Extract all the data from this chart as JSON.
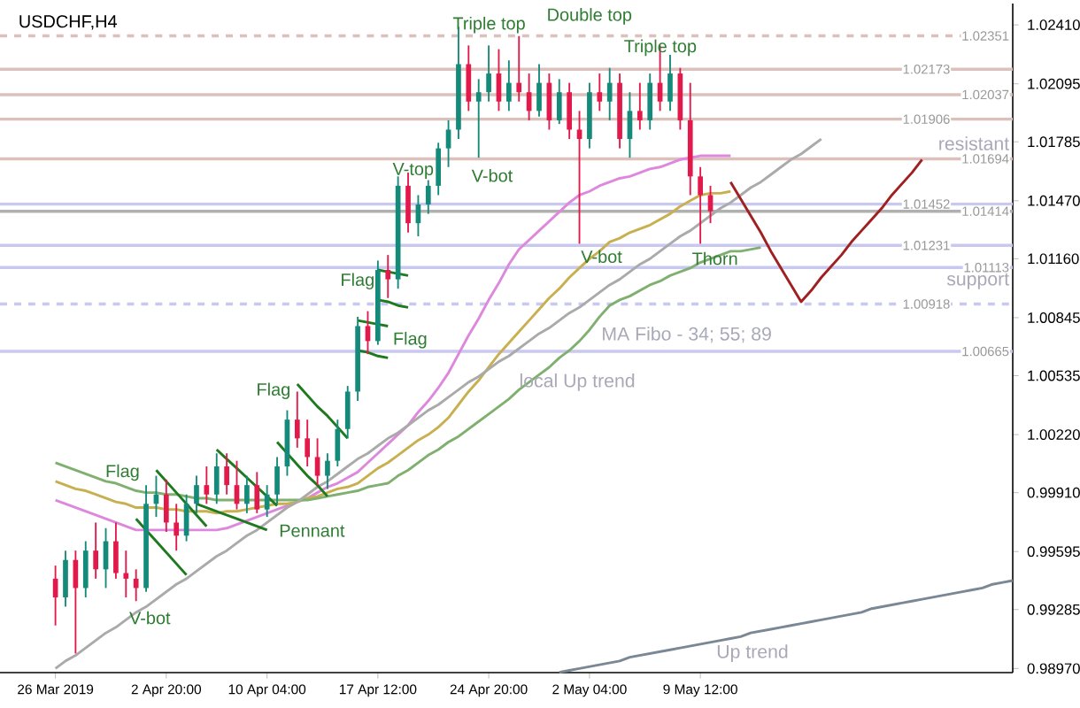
{
  "chart_data": {
    "type": "candlestick",
    "title": "USDCHF,H4",
    "categories": [
      "26 Mar 2019",
      null,
      null,
      null,
      null,
      null,
      null,
      null,
      null,
      null,
      null,
      "2 Apr 20:00",
      null,
      null,
      null,
      null,
      null,
      null,
      null,
      null,
      null,
      "10 Apr 04:00",
      null,
      null,
      null,
      null,
      null,
      null,
      null,
      null,
      null,
      null,
      "17 Apr 12:00",
      null,
      null,
      null,
      null,
      null,
      null,
      null,
      null,
      null,
      null,
      "24 Apr 20:00",
      null,
      null,
      null,
      null,
      null,
      null,
      null,
      null,
      null,
      "2 May 04:00",
      null,
      null,
      null,
      null,
      null,
      null,
      null,
      null,
      null,
      null,
      "9 May 12:00",
      null,
      null,
      null,
      null,
      null,
      null,
      null,
      null,
      null,
      null,
      null,
      null,
      null,
      null,
      null,
      null,
      null,
      null,
      null,
      null,
      null,
      null,
      null,
      null,
      null,
      null,
      null,
      null,
      null,
      null,
      null
    ],
    "ohlc": [
      [
        0.9945,
        0.9952,
        0.992,
        0.9935
      ],
      [
        0.9935,
        0.996,
        0.993,
        0.9955
      ],
      [
        0.9955,
        0.996,
        0.9905,
        0.994
      ],
      [
        0.994,
        0.9965,
        0.9935,
        0.996
      ],
      [
        0.996,
        0.9975,
        0.9945,
        0.995
      ],
      [
        0.995,
        0.9972,
        0.994,
        0.9965
      ],
      [
        0.9965,
        0.9975,
        0.9945,
        0.9948
      ],
      [
        0.9948,
        0.996,
        0.9935,
        0.9945
      ],
      [
        0.9945,
        0.995,
        0.9933,
        0.994
      ],
      [
        0.994,
        0.9995,
        0.9938,
        0.9985
      ],
      [
        0.9985,
        1.0,
        0.9978,
        0.999
      ],
      [
        0.999,
        0.9998,
        0.997,
        0.9975
      ],
      [
        0.9975,
        0.9985,
        0.996,
        0.9968
      ],
      [
        0.9968,
        0.999,
        0.9965,
        0.9985
      ],
      [
        0.9985,
        1.0,
        0.998,
        0.9995
      ],
      [
        0.9995,
        1.0005,
        0.9985,
        0.999
      ],
      [
        0.999,
        1.0012,
        0.9985,
        1.0005
      ],
      [
        1.0005,
        1.0012,
        0.999,
        0.9995
      ],
      [
        0.9995,
        1.0008,
        0.9982,
        0.9985
      ],
      [
        0.9985,
        1.0,
        0.998,
        0.9995
      ],
      [
        0.9995,
        1.0002,
        0.998,
        0.9982
      ],
      [
        0.9982,
        0.9995,
        0.9978,
        0.999
      ],
      [
        0.999,
        1.001,
        0.9985,
        1.0005
      ],
      [
        1.0005,
        1.0035,
        1.0,
        1.003
      ],
      [
        1.003,
        1.0045,
        1.0015,
        1.002
      ],
      [
        1.002,
        1.003,
        1.0005,
        1.001
      ],
      [
        1.001,
        1.002,
        0.9995,
        1.0
      ],
      [
        1.0,
        1.0012,
        0.9993,
        1.0008
      ],
      [
        1.0008,
        1.003,
        1.0005,
        1.0025
      ],
      [
        1.0025,
        1.0048,
        1.002,
        1.0045
      ],
      [
        1.0045,
        1.0085,
        1.004,
        1.008
      ],
      [
        1.008,
        1.0088,
        1.0065,
        1.0072
      ],
      [
        1.0072,
        1.0115,
        1.007,
        1.011
      ],
      [
        1.011,
        1.0118,
        1.0095,
        1.0105
      ],
      [
        1.0105,
        1.016,
        1.01,
        1.0155
      ],
      [
        1.0155,
        1.0162,
        1.013,
        1.0135
      ],
      [
        1.0135,
        1.015,
        1.0128,
        1.0145
      ],
      [
        1.0145,
        1.0158,
        1.014,
        1.0155
      ],
      [
        1.0155,
        1.0178,
        1.015,
        1.0175
      ],
      [
        1.0175,
        1.019,
        1.0165,
        1.0185
      ],
      [
        1.0185,
        1.024,
        1.018,
        1.022
      ],
      [
        1.022,
        1.023,
        1.0195,
        1.02
      ],
      [
        1.02,
        1.0212,
        1.017,
        1.0205
      ],
      [
        1.0205,
        1.023,
        1.02,
        1.0215
      ],
      [
        1.0215,
        1.0228,
        1.0195,
        1.02
      ],
      [
        1.02,
        1.0222,
        1.0195,
        1.021
      ],
      [
        1.021,
        1.0235,
        1.02,
        1.0205
      ],
      [
        1.0205,
        1.0215,
        1.019,
        1.0195
      ],
      [
        1.0195,
        1.022,
        1.0192,
        1.021
      ],
      [
        1.021,
        1.0215,
        1.0185,
        1.019
      ],
      [
        1.019,
        1.0212,
        1.0188,
        1.0205
      ],
      [
        1.0205,
        1.021,
        1.018,
        1.0185
      ],
      [
        1.0185,
        1.0195,
        1.0124,
        1.018
      ],
      [
        1.018,
        1.021,
        1.0175,
        1.0205
      ],
      [
        1.0205,
        1.0215,
        1.0195,
        1.02
      ],
      [
        1.02,
        1.0218,
        1.019,
        1.021
      ],
      [
        1.021,
        1.0215,
        1.0175,
        1.018
      ],
      [
        1.018,
        1.0205,
        1.017,
        1.0195
      ],
      [
        1.0195,
        1.021,
        1.0185,
        1.019
      ],
      [
        1.019,
        1.0215,
        1.0185,
        1.021
      ],
      [
        1.021,
        1.023,
        1.0195,
        1.02
      ],
      [
        1.02,
        1.0225,
        1.0195,
        1.0215
      ],
      [
        1.0215,
        1.0218,
        1.0185,
        1.019
      ],
      [
        1.019,
        1.021,
        1.015,
        1.016
      ],
      [
        1.016,
        1.0165,
        1.0124,
        1.015
      ],
      [
        1.015,
        1.0155,
        1.0135,
        1.01414
      ],
      null,
      null,
      null,
      null,
      null,
      null,
      null,
      null,
      null,
      null,
      null,
      null,
      null,
      null,
      null,
      null,
      null,
      null,
      null,
      null,
      null,
      null,
      null,
      null,
      null,
      null,
      null,
      null,
      null,
      null
    ],
    "colors": [
      "#e2194b",
      "#138a7a",
      "#e2194b",
      "#138a7a",
      "#e2194b",
      "#138a7a",
      "#e2194b",
      "#e2194b",
      "#e2194b",
      "#138a7a",
      "#138a7a",
      "#e2194b",
      "#e2194b",
      "#138a7a",
      "#138a7a",
      "#e2194b",
      "#138a7a",
      "#e2194b",
      "#e2194b",
      "#138a7a",
      "#e2194b",
      "#138a7a",
      "#138a7a",
      "#138a7a",
      "#e2194b",
      "#e2194b",
      "#e2194b",
      "#138a7a",
      "#138a7a",
      "#138a7a",
      "#138a7a",
      "#e2194b",
      "#138a7a",
      "#e2194b",
      "#138a7a",
      "#e2194b",
      "#138a7a",
      "#138a7a",
      "#138a7a",
      "#138a7a",
      "#138a7a",
      "#e2194b",
      "#138a7a",
      "#138a7a",
      "#e2194b",
      "#138a7a",
      "#e2194b",
      "#e2194b",
      "#138a7a",
      "#e2194b",
      "#138a7a",
      "#e2194b",
      "#e2194b",
      "#138a7a",
      "#e2194b",
      "#138a7a",
      "#e2194b",
      "#138a7a",
      "#e2194b",
      "#138a7a",
      "#e2194b",
      "#138a7a",
      "#e2194b",
      "#e2194b",
      "#e2194b",
      "#e2194b",
      null,
      null,
      null,
      null,
      null,
      null,
      null,
      null,
      null,
      null,
      null,
      null,
      null,
      null,
      null,
      null,
      null,
      null,
      null,
      null,
      null,
      null,
      null,
      null,
      null,
      null,
      null,
      null,
      null,
      null
    ],
    "series": [
      {
        "type": "line",
        "color": "#dd88dd",
        "values": [
          0.9987,
          0.9985,
          0.9983,
          0.9981,
          0.9979,
          0.9977,
          0.9975,
          0.9973,
          0.9971,
          0.9971,
          0.9971,
          0.9971,
          0.9971,
          0.9971,
          0.9971,
          0.9971,
          0.9971,
          0.9972,
          0.9974,
          0.9976,
          0.9978,
          0.998,
          0.9982,
          0.9984,
          0.9986,
          0.9988,
          0.9991,
          0.9994,
          0.9996,
          0.9999,
          1.0002,
          1.0007,
          1.0012,
          1.0017,
          1.0022,
          1.0027,
          1.0034,
          1.004,
          1.0047,
          1.0055,
          1.0065,
          1.0075,
          1.0084,
          1.0094,
          1.0103,
          1.0113,
          1.0121,
          1.0126,
          1.0131,
          1.0136,
          1.0141,
          1.0146,
          1.015,
          1.0152,
          1.0155,
          1.0157,
          1.0159,
          1.016,
          1.0162,
          1.0164,
          1.0165,
          1.0167,
          1.0169,
          1.017,
          1.0171,
          1.0171,
          1.0171,
          1.0171,
          null,
          null,
          null,
          null,
          null,
          null,
          null,
          null,
          null,
          null,
          null,
          null,
          null,
          null,
          null,
          null,
          null,
          null,
          null,
          null,
          null,
          null,
          null,
          null,
          null,
          null,
          null,
          null
        ]
      },
      {
        "type": "line",
        "color": "#c8b050",
        "values": [
          0.9997,
          0.9995,
          0.9993,
          0.9992,
          0.999,
          0.9988,
          0.9986,
          0.9985,
          0.9983,
          0.9983,
          0.9983,
          0.9982,
          0.9982,
          0.9981,
          0.9981,
          0.9981,
          0.998,
          0.9981,
          0.9981,
          0.9982,
          0.9983,
          0.9984,
          0.9985,
          0.9985,
          0.9986,
          0.9988,
          0.9989,
          0.9991,
          0.9993,
          0.9994,
          0.9996,
          1.0,
          1.0004,
          1.0007,
          1.0011,
          1.0015,
          1.0019,
          1.0022,
          1.0026,
          1.0031,
          1.0038,
          1.0045,
          1.0051,
          1.0058,
          1.0065,
          1.0071,
          1.0077,
          1.0083,
          1.0089,
          1.0095,
          1.01,
          1.0106,
          1.0111,
          1.0116,
          1.012,
          1.0125,
          1.0127,
          1.013,
          1.0132,
          1.0134,
          1.0137,
          1.014,
          1.0144,
          1.0147,
          1.015,
          1.0151,
          1.0151,
          1.0152,
          null,
          null,
          null,
          null,
          null,
          null,
          null,
          null,
          null,
          null,
          null,
          null,
          null,
          null,
          null,
          null,
          null,
          null,
          null,
          null,
          null,
          null,
          null,
          null,
          null,
          null,
          null,
          null
        ]
      },
      {
        "type": "line",
        "color": "#80b070",
        "values": [
          1.0007,
          1.0005,
          1.0003,
          1.0001,
          0.9999,
          0.9997,
          0.9996,
          0.9994,
          0.9992,
          0.9991,
          0.9991,
          0.999,
          0.999,
          0.9989,
          0.9988,
          0.9988,
          0.9987,
          0.9987,
          0.9987,
          0.9987,
          0.9987,
          0.9987,
          0.9987,
          0.9987,
          0.9987,
          0.9987,
          0.9988,
          0.9989,
          0.999,
          0.9991,
          0.9992,
          0.9994,
          0.9995,
          0.9996,
          1.0,
          1.0003,
          1.0007,
          1.0011,
          1.0014,
          1.0018,
          1.0021,
          1.0025,
          1.0029,
          1.0033,
          1.0037,
          1.0041,
          1.0046,
          1.005,
          1.0054,
          1.0058,
          1.0063,
          1.0067,
          1.0072,
          1.0078,
          1.0085,
          1.0091,
          1.0094,
          1.0096,
          1.0099,
          1.0102,
          1.0104,
          1.0107,
          1.0109,
          1.0111,
          1.0114,
          1.0116,
          1.0118,
          1.012,
          1.012,
          1.0121,
          1.0122,
          null,
          null,
          null,
          null,
          null,
          null,
          null,
          null,
          null,
          null,
          null,
          null,
          null,
          null,
          null,
          null,
          null,
          null,
          null,
          null,
          null,
          null,
          null,
          null,
          null
        ]
      },
      {
        "type": "line",
        "color": "#aaaaaa",
        "values": [
          0.9897,
          0.9901,
          0.9904,
          0.9908,
          0.9912,
          0.9916,
          0.9919,
          0.9923,
          0.9927,
          0.993,
          0.9934,
          0.9938,
          0.9942,
          0.9945,
          0.9949,
          0.9953,
          0.9957,
          0.996,
          0.9964,
          0.9968,
          0.9971,
          0.9975,
          0.9979,
          0.9983,
          0.9986,
          0.999,
          0.9994,
          0.9997,
          1.0001,
          1.0005,
          1.0009,
          1.0012,
          1.0016,
          1.002,
          1.0023,
          1.0027,
          1.0031,
          1.0035,
          1.0038,
          1.0042,
          1.0046,
          1.005,
          1.0053,
          1.0057,
          1.0061,
          1.0064,
          1.0068,
          1.0072,
          1.0076,
          1.0079,
          1.0083,
          1.0087,
          1.009,
          1.0094,
          1.0098,
          1.0102,
          1.0105,
          1.0109,
          1.0113,
          1.0116,
          1.012,
          1.0124,
          1.0128,
          1.0131,
          1.0135,
          1.0139,
          1.0143,
          1.0146,
          1.015,
          1.0154,
          1.0157,
          1.0161,
          1.0165,
          1.0169,
          1.0172,
          1.0176,
          1.018,
          null,
          null,
          null,
          null,
          null,
          null,
          null,
          null,
          null,
          null,
          null,
          null,
          null,
          null,
          null,
          null,
          null,
          null,
          null
        ]
      },
      {
        "type": "line",
        "color": "#7a8794",
        "values": [
          null,
          null,
          null,
          null,
          null,
          null,
          null,
          null,
          null,
          null,
          null,
          null,
          null,
          null,
          null,
          null,
          null,
          null,
          null,
          null,
          null,
          null,
          null,
          null,
          null,
          null,
          null,
          null,
          null,
          null,
          null,
          null,
          null,
          null,
          null,
          null,
          null,
          null,
          null,
          null,
          null,
          null,
          null,
          null,
          null,
          null,
          null,
          null,
          null,
          null,
          0.9895,
          0.9896,
          0.9897,
          0.9898,
          0.9899,
          0.99,
          0.9901,
          0.9903,
          0.9904,
          0.9905,
          0.9906,
          0.9907,
          0.9908,
          0.9909,
          0.991,
          0.9911,
          0.9912,
          0.9913,
          0.9914,
          0.9916,
          0.9917,
          0.9918,
          0.9919,
          0.992,
          0.9921,
          0.9922,
          0.9923,
          0.9924,
          0.9925,
          0.9926,
          0.9927,
          0.9929,
          0.993,
          0.9931,
          0.9932,
          0.9933,
          0.9934,
          0.9935,
          0.9936,
          0.9937,
          0.9938,
          0.9939,
          0.994,
          0.9942,
          0.9943,
          0.9944
        ]
      },
      {
        "type": "line",
        "color": "#1e7a1e",
        "values": [
          null,
          null,
          null,
          null,
          null,
          null,
          null,
          null,
          null,
          null,
          1.0003,
          0.9997,
          0.9991,
          0.9985,
          0.9979,
          0.9973,
          null,
          null,
          null,
          null,
          null,
          null,
          null,
          null,
          null,
          null,
          null,
          null,
          null,
          null,
          null,
          null,
          null,
          null,
          null,
          null,
          null,
          null,
          null,
          null,
          null,
          null,
          null,
          null,
          null,
          null,
          null,
          null,
          null,
          null,
          null,
          null,
          null,
          null,
          null,
          null,
          null,
          null,
          null,
          null,
          null,
          null,
          null,
          null,
          null,
          null,
          null,
          null,
          null,
          null,
          null,
          null,
          null,
          null,
          null,
          null,
          null,
          null,
          null,
          null,
          null,
          null,
          null,
          null,
          null,
          null,
          null,
          null,
          null,
          null,
          null,
          null,
          null,
          null,
          null,
          null
        ]
      },
      {
        "type": "line",
        "color": "#1e7a1e",
        "values": [
          null,
          null,
          null,
          null,
          null,
          null,
          null,
          null,
          0.9977,
          0.9971,
          0.9965,
          0.9959,
          0.9953,
          0.9947,
          null,
          null,
          null,
          null,
          null,
          null,
          null,
          null,
          null,
          null,
          null,
          null,
          null,
          null,
          null,
          null,
          null,
          null,
          null,
          null,
          null,
          null,
          null,
          null,
          null,
          null,
          null,
          null,
          null,
          null,
          null,
          null,
          null,
          null,
          null,
          null,
          null,
          null,
          null,
          null,
          null,
          null,
          null,
          null,
          null,
          null,
          null,
          null,
          null,
          null,
          null,
          null,
          null,
          null,
          null,
          null,
          null,
          null,
          null,
          null,
          null,
          null,
          null,
          null,
          null,
          null,
          null,
          null,
          null,
          null,
          null,
          null,
          null,
          null,
          null,
          null,
          null,
          null,
          null,
          null,
          null,
          null
        ]
      },
      {
        "type": "line",
        "color": "#1e7a1e",
        "values": [
          null,
          null,
          null,
          null,
          null,
          null,
          null,
          null,
          null,
          null,
          null,
          null,
          null,
          null,
          0.9985,
          0.9983,
          0.9981,
          0.9979,
          0.9977,
          0.9975,
          0.9973,
          0.9971,
          null,
          null,
          null,
          null,
          null,
          null,
          null,
          null,
          null,
          null,
          null,
          null,
          null,
          null,
          null,
          null,
          null,
          null,
          null,
          null,
          null,
          null,
          null,
          null,
          null,
          null,
          null,
          null,
          null,
          null,
          null,
          null,
          null,
          null,
          null,
          null,
          null,
          null,
          null,
          null,
          null,
          null,
          null,
          null,
          null,
          null,
          null,
          null,
          null,
          null,
          null,
          null,
          null,
          null,
          null,
          null,
          null,
          null,
          null,
          null,
          null,
          null,
          null,
          null,
          null,
          null,
          null,
          null,
          null,
          null,
          null,
          null,
          null,
          null
        ]
      },
      {
        "type": "line",
        "color": "#1e7a1e",
        "values": [
          null,
          null,
          null,
          null,
          null,
          null,
          null,
          null,
          null,
          null,
          null,
          null,
          null,
          null,
          null,
          null,
          1.0014,
          1.0009,
          1.0004,
          0.9999,
          0.9994,
          0.9989,
          0.9984,
          null,
          null,
          null,
          null,
          null,
          null,
          null,
          null,
          null,
          null,
          null,
          null,
          null,
          null,
          null,
          null,
          null,
          null,
          null,
          null,
          null,
          null,
          null,
          null,
          null,
          null,
          null,
          null,
          null,
          null,
          null,
          null,
          null,
          null,
          null,
          null,
          null,
          null,
          null,
          null,
          null,
          null,
          null,
          null,
          null,
          null,
          null,
          null,
          null,
          null,
          null,
          null,
          null,
          null,
          null,
          null,
          null,
          null,
          null,
          null,
          null,
          null,
          null,
          null,
          null,
          null,
          null,
          null,
          null,
          null,
          null,
          null,
          null
        ]
      },
      {
        "type": "line",
        "color": "#1e7a1e",
        "values": [
          null,
          null,
          null,
          null,
          null,
          null,
          null,
          null,
          null,
          null,
          null,
          null,
          null,
          null,
          null,
          null,
          null,
          null,
          null,
          null,
          null,
          null,
          null,
          null,
          1.0049,
          1.0043,
          1.0037,
          1.0032,
          1.0026,
          1.002,
          null,
          null,
          null,
          null,
          null,
          null,
          null,
          null,
          null,
          null,
          null,
          null,
          null,
          null,
          null,
          null,
          null,
          null,
          null,
          null,
          null,
          null,
          null,
          null,
          null,
          null,
          null,
          null,
          null,
          null,
          null,
          null,
          null,
          null,
          null,
          null,
          null,
          null,
          null,
          null,
          null,
          null,
          null,
          null,
          null,
          null,
          null,
          null,
          null,
          null,
          null,
          null,
          null,
          null,
          null,
          null,
          null,
          null,
          null,
          null,
          null,
          null,
          null,
          null,
          null,
          null
        ]
      },
      {
        "type": "line",
        "color": "#1e7a1e",
        "values": [
          null,
          null,
          null,
          null,
          null,
          null,
          null,
          null,
          null,
          null,
          null,
          null,
          null,
          null,
          null,
          null,
          null,
          null,
          null,
          null,
          null,
          null,
          1.0018,
          1.0012,
          1.0006,
          1.0,
          0.9995,
          0.9989,
          null,
          null,
          null,
          null,
          null,
          null,
          null,
          null,
          null,
          null,
          null,
          null,
          null,
          null,
          null,
          null,
          null,
          null,
          null,
          null,
          null,
          null,
          null,
          null,
          null,
          null,
          null,
          null,
          null,
          null,
          null,
          null,
          null,
          null,
          null,
          null,
          null,
          null,
          null,
          null,
          null,
          null,
          null,
          null,
          null,
          null,
          null,
          null,
          null,
          null,
          null,
          null,
          null,
          null,
          null,
          null,
          null,
          null,
          null,
          null,
          null,
          null,
          null,
          null,
          null,
          null,
          null,
          null
        ]
      },
      {
        "type": "line",
        "color": "#1e7a1e",
        "values": [
          null,
          null,
          null,
          null,
          null,
          null,
          null,
          null,
          null,
          null,
          null,
          null,
          null,
          null,
          null,
          null,
          null,
          null,
          null,
          null,
          null,
          null,
          null,
          null,
          null,
          null,
          null,
          null,
          null,
          null,
          1.0083,
          1.0082,
          1.0081,
          1.008,
          null,
          null,
          null,
          null,
          null,
          null,
          null,
          null,
          null,
          null,
          null,
          null,
          null,
          null,
          null,
          null,
          null,
          null,
          null,
          null,
          null,
          null,
          null,
          null,
          null,
          null,
          null,
          null,
          null,
          null,
          null,
          null,
          null,
          null,
          null,
          null,
          null,
          null,
          null,
          null,
          null,
          null,
          null,
          null,
          null,
          null,
          null,
          null,
          null,
          null,
          null,
          null,
          null,
          null,
          null,
          null,
          null,
          null,
          null,
          null,
          null,
          null
        ]
      },
      {
        "type": "line",
        "color": "#1e7a1e",
        "values": [
          null,
          null,
          null,
          null,
          null,
          null,
          null,
          null,
          null,
          null,
          null,
          null,
          null,
          null,
          null,
          null,
          null,
          null,
          null,
          null,
          null,
          null,
          null,
          null,
          null,
          null,
          null,
          null,
          null,
          null,
          1.0067,
          1.0066,
          1.0064,
          1.0063,
          null,
          null,
          null,
          null,
          null,
          null,
          null,
          null,
          null,
          null,
          null,
          null,
          null,
          null,
          null,
          null,
          null,
          null,
          null,
          null,
          null,
          null,
          null,
          null,
          null,
          null,
          null,
          null,
          null,
          null,
          null,
          null,
          null,
          null,
          null,
          null,
          null,
          null,
          null,
          null,
          null,
          null,
          null,
          null,
          null,
          null,
          null,
          null,
          null,
          null,
          null,
          null,
          null,
          null,
          null,
          null,
          null,
          null,
          null,
          null,
          null,
          null
        ]
      },
      {
        "type": "line",
        "color": "#1e7a1e",
        "values": [
          null,
          null,
          null,
          null,
          null,
          null,
          null,
          null,
          null,
          null,
          null,
          null,
          null,
          null,
          null,
          null,
          null,
          null,
          null,
          null,
          null,
          null,
          null,
          null,
          null,
          null,
          null,
          null,
          null,
          null,
          null,
          null,
          1.011,
          1.0109,
          1.0108,
          1.0107,
          null,
          null,
          null,
          null,
          null,
          null,
          null,
          null,
          null,
          null,
          null,
          null,
          null,
          null,
          null,
          null,
          null,
          null,
          null,
          null,
          null,
          null,
          null,
          null,
          null,
          null,
          null,
          null,
          null,
          null,
          null,
          null,
          null,
          null,
          null,
          null,
          null,
          null,
          null,
          null,
          null,
          null,
          null,
          null,
          null,
          null,
          null,
          null,
          null,
          null,
          null,
          null,
          null,
          null,
          null,
          null,
          null,
          null,
          null,
          null
        ]
      },
      {
        "type": "line",
        "color": "#1e7a1e",
        "values": [
          null,
          null,
          null,
          null,
          null,
          null,
          null,
          null,
          null,
          null,
          null,
          null,
          null,
          null,
          null,
          null,
          null,
          null,
          null,
          null,
          null,
          null,
          null,
          null,
          null,
          null,
          null,
          null,
          null,
          null,
          null,
          null,
          1.0094,
          1.0093,
          1.0091,
          1.009,
          null,
          null,
          null,
          null,
          null,
          null,
          null,
          null,
          null,
          null,
          null,
          null,
          null,
          null,
          null,
          null,
          null,
          null,
          null,
          null,
          null,
          null,
          null,
          null,
          null,
          null,
          null,
          null,
          null,
          null,
          null,
          null,
          null,
          null,
          null,
          null,
          null,
          null,
          null,
          null,
          null,
          null,
          null,
          null,
          null,
          null,
          null,
          null,
          null,
          null,
          null,
          null,
          null,
          null,
          null,
          null,
          null,
          null,
          null,
          null
        ]
      },
      {
        "type": "line",
        "color": "#a02020",
        "values": [
          null,
          null,
          null,
          null,
          null,
          null,
          null,
          null,
          null,
          null,
          null,
          null,
          null,
          null,
          null,
          null,
          null,
          null,
          null,
          null,
          null,
          null,
          null,
          null,
          null,
          null,
          null,
          null,
          null,
          null,
          null,
          null,
          null,
          null,
          null,
          null,
          null,
          null,
          null,
          null,
          null,
          null,
          null,
          null,
          null,
          null,
          null,
          null,
          null,
          null,
          null,
          null,
          null,
          null,
          null,
          null,
          null,
          null,
          null,
          null,
          null,
          null,
          null,
          null,
          null,
          null,
          null,
          1.0157,
          1.0148,
          1.0139,
          1.013,
          1.012,
          1.0111,
          1.0102,
          1.0093,
          1.0099,
          1.0106,
          1.0112,
          1.0118,
          1.0125,
          1.0131,
          1.0137,
          1.0143,
          1.015,
          1.0156,
          1.0162,
          1.0169,
          null,
          null,
          null,
          null,
          null,
          null,
          null,
          null,
          null
        ]
      }
    ],
    "ylim": [
      0.98948,
      1.02524
    ],
    "yticks": [
      {
        "value": 0.9897,
        "label": "0.98970"
      },
      {
        "value": 0.99285,
        "label": "0.99285"
      },
      {
        "value": 0.99595,
        "label": "0.99595"
      },
      {
        "value": 0.9991,
        "label": "0.99910"
      },
      {
        "value": 1.0022,
        "label": "1.00220"
      },
      {
        "value": 1.00535,
        "label": "1.00535"
      },
      {
        "value": 1.00845,
        "label": "1.00845"
      },
      {
        "value": 1.0116,
        "label": "1.01160"
      },
      {
        "value": 1.0147,
        "label": "1.01470"
      },
      {
        "value": 1.01785,
        "label": "1.01785"
      },
      {
        "value": 1.02095,
        "label": "1.02095"
      },
      {
        "value": 1.0241,
        "label": "1.02410"
      }
    ],
    "ref_lines": [
      {
        "axis": "y",
        "value": 1.02351,
        "label": "1.02351",
        "color": "#dcc0bc",
        "line_style": "dashed"
      },
      {
        "axis": "y",
        "value": 1.02173,
        "label": "1.02173",
        "color": "#dcc0bc"
      },
      {
        "axis": "y",
        "value": 1.02037,
        "label": "1.02037",
        "color": "#dcc0bc"
      },
      {
        "axis": "y",
        "value": 1.01906,
        "label": "1.01906",
        "color": "#dcc0bc"
      },
      {
        "axis": "y",
        "value": 1.01694,
        "label": "1.01694",
        "color": "#dcc0bc"
      },
      {
        "axis": "y",
        "value": 1.01452,
        "label": "1.01452",
        "color": "#c8c8f0"
      },
      {
        "axis": "y",
        "value": 1.01414,
        "label": "1.01414",
        "color": "#b0b0b0"
      },
      {
        "axis": "y",
        "value": 1.01231,
        "label": "1.01231",
        "color": "#c8c8f0"
      },
      {
        "axis": "y",
        "value": 1.01113,
        "label": "1.01113",
        "color": "#c8c8f0"
      },
      {
        "axis": "y",
        "value": 1.00918,
        "label": "1.00918",
        "color": "#c8c8f0",
        "line_style": "dashed"
      },
      {
        "axis": "y",
        "value": 1.00665,
        "label": "1.00665",
        "color": "#c8c8f0"
      }
    ],
    "annotations": [
      "Flag",
      "V-bot",
      "Pennant",
      "Flag",
      "Flag",
      "Flag",
      {
        "text": "V-top",
        "y": 1.0163
      },
      "V-bot",
      "Triple top",
      "Double top",
      "Triple top",
      "V-bot",
      "Thorn",
      "resistant",
      "support",
      "MA Fibo - 34; 55; 89",
      "local Up trend",
      "Up trend"
    ]
  }
}
